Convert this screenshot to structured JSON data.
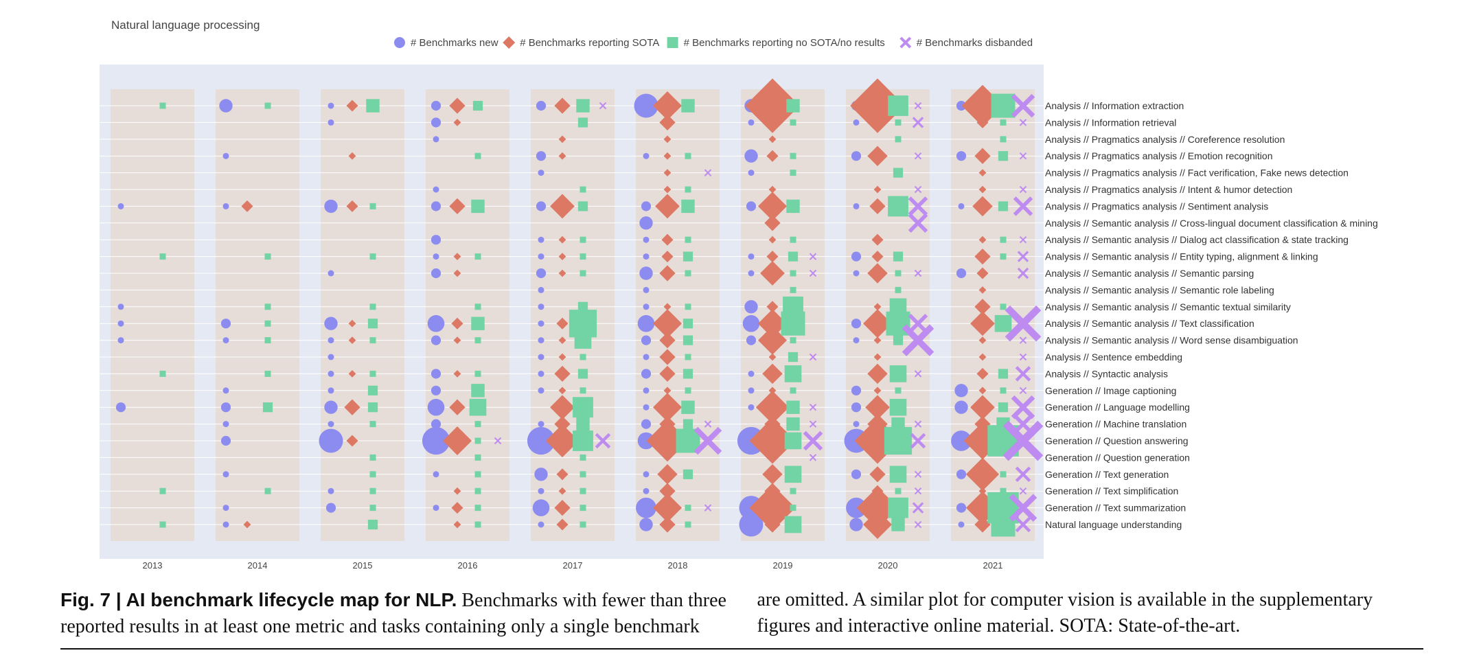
{
  "chart_data": {
    "type": "scatter",
    "title": "Natural language processing",
    "legend_position": "top",
    "legend": [
      {
        "key": "new",
        "label": "# Benchmarks new",
        "marker": "circle",
        "color": "#8c8cf0"
      },
      {
        "key": "sota",
        "label": "# Benchmarks reporting SOTA",
        "marker": "diamond",
        "color": "#dc7863"
      },
      {
        "key": "nosota",
        "label": "# Benchmarks reporting no SOTA/no results",
        "marker": "square",
        "color": "#72d4a4"
      },
      {
        "key": "disbanded",
        "label": "# Benchmarks disbanded",
        "marker": "x",
        "color": "#be8cf0"
      }
    ],
    "years": [
      "2013",
      "2014",
      "2015",
      "2016",
      "2017",
      "2018",
      "2019",
      "2020",
      "2021"
    ],
    "tasks": [
      "Analysis // Information extraction",
      "Analysis // Information retrieval",
      "Analysis // Pragmatics analysis // Coreference resolution",
      "Analysis // Pragmatics analysis // Emotion recognition",
      "Analysis // Pragmatics analysis // Fact verification, Fake news detection",
      "Analysis // Pragmatics analysis // Intent & humor detection",
      "Analysis // Pragmatics analysis // Sentiment analysis",
      "Analysis // Semantic analysis // Cross-lingual document classification & mining",
      "Analysis // Semantic analysis // Dialog act classification & state tracking",
      "Analysis // Semantic analysis // Entity typing, alignment & linking",
      "Analysis // Semantic analysis // Semantic parsing",
      "Analysis // Semantic analysis // Semantic role labeling",
      "Analysis // Semantic analysis // Semantic textual similarity",
      "Analysis // Semantic analysis // Text classification",
      "Analysis // Semantic analysis // Word sense disambiguation",
      "Analysis // Sentence embedding",
      "Analysis // Syntactic analysis",
      "Generation // Image captioning",
      "Generation // Language modelling",
      "Generation // Machine translation",
      "Generation // Question answering",
      "Generation // Question generation",
      "Generation // Text generation",
      "Generation // Text simplification",
      "Generation // Text summarization",
      "Natural language understanding"
    ],
    "size_scale": "marker size proportional to count",
    "grid": true,
    "values": {
      "new": [
        [
          0,
          3,
          1,
          2,
          2,
          6,
          3,
          2,
          2
        ],
        [
          0,
          0,
          1,
          2,
          0,
          0,
          1,
          1,
          0
        ],
        [
          0,
          0,
          0,
          1,
          0,
          0,
          0,
          0,
          0
        ],
        [
          0,
          1,
          0,
          0,
          2,
          1,
          3,
          2,
          2
        ],
        [
          0,
          0,
          0,
          0,
          1,
          0,
          1,
          0,
          0
        ],
        [
          0,
          0,
          0,
          1,
          0,
          0,
          0,
          0,
          0
        ],
        [
          1,
          1,
          3,
          2,
          2,
          2,
          2,
          1,
          1
        ],
        [
          0,
          0,
          0,
          0,
          0,
          3,
          0,
          0,
          0
        ],
        [
          0,
          0,
          0,
          2,
          1,
          1,
          0,
          0,
          0
        ],
        [
          0,
          0,
          0,
          1,
          1,
          1,
          1,
          2,
          0
        ],
        [
          0,
          0,
          1,
          2,
          2,
          3,
          1,
          1,
          2
        ],
        [
          0,
          0,
          0,
          0,
          1,
          1,
          0,
          0,
          0
        ],
        [
          1,
          0,
          0,
          0,
          1,
          1,
          3,
          0,
          0
        ],
        [
          1,
          2,
          3,
          4,
          1,
          4,
          4,
          2,
          0
        ],
        [
          1,
          1,
          1,
          2,
          1,
          2,
          2,
          1,
          0
        ],
        [
          0,
          0,
          1,
          0,
          1,
          1,
          0,
          0,
          0
        ],
        [
          0,
          0,
          1,
          2,
          1,
          2,
          1,
          0,
          0
        ],
        [
          0,
          1,
          1,
          2,
          1,
          1,
          1,
          2,
          3
        ],
        [
          2,
          2,
          3,
          4,
          0,
          1,
          1,
          2,
          3
        ],
        [
          0,
          1,
          1,
          2,
          1,
          2,
          0,
          1,
          0
        ],
        [
          0,
          2,
          6,
          7,
          7,
          4,
          7,
          6,
          5
        ],
        [
          0,
          0,
          0,
          0,
          0,
          0,
          0,
          0,
          0
        ],
        [
          0,
          1,
          0,
          1,
          3,
          1,
          0,
          2,
          2
        ],
        [
          0,
          0,
          1,
          0,
          1,
          1,
          0,
          0,
          0
        ],
        [
          0,
          1,
          2,
          1,
          4,
          5,
          6,
          5,
          2
        ],
        [
          0,
          1,
          0,
          0,
          1,
          3,
          6,
          3,
          1
        ]
      ],
      "sota": [
        [
          0,
          0,
          2,
          3,
          3,
          6,
          12,
          12,
          9
        ],
        [
          0,
          0,
          0,
          1,
          0,
          3,
          2,
          3,
          2
        ],
        [
          0,
          0,
          0,
          0,
          1,
          1,
          1,
          0,
          0
        ],
        [
          0,
          0,
          1,
          0,
          1,
          1,
          2,
          4,
          3
        ],
        [
          0,
          0,
          0,
          0,
          0,
          1,
          0,
          0,
          1
        ],
        [
          0,
          0,
          0,
          0,
          0,
          1,
          1,
          1,
          1
        ],
        [
          0,
          2,
          2,
          3,
          5,
          5,
          6,
          3,
          4
        ],
        [
          0,
          0,
          0,
          0,
          0,
          0,
          3,
          0,
          0
        ],
        [
          0,
          0,
          0,
          0,
          1,
          2,
          1,
          2,
          1
        ],
        [
          0,
          0,
          0,
          1,
          1,
          2,
          2,
          2,
          3
        ],
        [
          0,
          0,
          0,
          1,
          1,
          3,
          5,
          4,
          2
        ],
        [
          0,
          0,
          0,
          0,
          0,
          0,
          0,
          0,
          1
        ],
        [
          0,
          0,
          0,
          0,
          0,
          1,
          2,
          1,
          3
        ],
        [
          0,
          0,
          1,
          2,
          2,
          6,
          6,
          6,
          5
        ],
        [
          0,
          0,
          1,
          1,
          1,
          3,
          6,
          1,
          1
        ],
        [
          0,
          0,
          0,
          0,
          1,
          3,
          1,
          1,
          1
        ],
        [
          0,
          0,
          1,
          1,
          3,
          3,
          4,
          4,
          2
        ],
        [
          0,
          0,
          0,
          0,
          1,
          1,
          1,
          1,
          1
        ],
        [
          0,
          0,
          3,
          3,
          5,
          6,
          7,
          5,
          5
        ],
        [
          0,
          0,
          0,
          0,
          3,
          3,
          3,
          4,
          3
        ],
        [
          0,
          0,
          2,
          6,
          7,
          9,
          10,
          10,
          8
        ],
        [
          0,
          0,
          0,
          0,
          0,
          0,
          1,
          1,
          0
        ],
        [
          0,
          0,
          0,
          0,
          2,
          4,
          4,
          3,
          7
        ],
        [
          0,
          0,
          0,
          1,
          1,
          3,
          3,
          2,
          1
        ],
        [
          0,
          0,
          0,
          2,
          3,
          6,
          10,
          9,
          7
        ],
        [
          0,
          1,
          0,
          1,
          2,
          3,
          3,
          6,
          3
        ]
      ],
      "nosota": [
        [
          1,
          1,
          3,
          2,
          3,
          3,
          3,
          5,
          6
        ],
        [
          0,
          0,
          0,
          0,
          2,
          0,
          1,
          1,
          1
        ],
        [
          0,
          0,
          0,
          0,
          0,
          0,
          0,
          1,
          1
        ],
        [
          0,
          0,
          0,
          1,
          0,
          1,
          1,
          0,
          2
        ],
        [
          0,
          0,
          0,
          0,
          0,
          0,
          1,
          2,
          0
        ],
        [
          0,
          0,
          0,
          0,
          1,
          1,
          0,
          0,
          0
        ],
        [
          0,
          0,
          1,
          3,
          2,
          3,
          3,
          5,
          2
        ],
        [
          0,
          0,
          0,
          0,
          0,
          0,
          0,
          0,
          0
        ],
        [
          0,
          0,
          0,
          0,
          1,
          1,
          1,
          0,
          1
        ],
        [
          1,
          1,
          1,
          1,
          1,
          2,
          2,
          2,
          1
        ],
        [
          0,
          0,
          0,
          0,
          1,
          1,
          1,
          1,
          0
        ],
        [
          0,
          0,
          0,
          0,
          0,
          0,
          1,
          1,
          0
        ],
        [
          0,
          1,
          1,
          1,
          2,
          1,
          5,
          4,
          1
        ],
        [
          0,
          1,
          2,
          3,
          7,
          2,
          6,
          6,
          4
        ],
        [
          0,
          1,
          1,
          1,
          4,
          2,
          1,
          2,
          0
        ],
        [
          0,
          0,
          0,
          0,
          1,
          1,
          2,
          0,
          0
        ],
        [
          1,
          1,
          1,
          1,
          2,
          2,
          4,
          4,
          2
        ],
        [
          0,
          0,
          2,
          3,
          1,
          1,
          1,
          1,
          1
        ],
        [
          0,
          2,
          2,
          4,
          5,
          3,
          3,
          4,
          2
        ],
        [
          0,
          0,
          1,
          1,
          3,
          2,
          3,
          3,
          3
        ],
        [
          0,
          0,
          0,
          1,
          5,
          6,
          4,
          7,
          8
        ],
        [
          0,
          0,
          1,
          1,
          1,
          0,
          0,
          0,
          0
        ],
        [
          0,
          0,
          1,
          1,
          1,
          2,
          4,
          4,
          1
        ],
        [
          1,
          1,
          1,
          1,
          1,
          0,
          1,
          1,
          1
        ],
        [
          0,
          0,
          1,
          1,
          1,
          1,
          1,
          5,
          8
        ],
        [
          1,
          0,
          2,
          1,
          1,
          1,
          4,
          3,
          6
        ]
      ],
      "disbanded": [
        [
          0,
          0,
          0,
          0,
          1,
          0,
          0,
          1,
          5
        ],
        [
          0,
          0,
          0,
          0,
          0,
          0,
          0,
          2,
          1
        ],
        [
          0,
          0,
          0,
          0,
          0,
          0,
          0,
          0,
          0
        ],
        [
          0,
          0,
          0,
          0,
          0,
          0,
          0,
          1,
          1
        ],
        [
          0,
          0,
          0,
          0,
          0,
          1,
          0,
          0,
          0
        ],
        [
          0,
          0,
          0,
          0,
          0,
          0,
          0,
          1,
          1
        ],
        [
          0,
          0,
          0,
          0,
          0,
          0,
          0,
          4,
          4
        ],
        [
          0,
          0,
          0,
          0,
          0,
          0,
          0,
          4,
          0
        ],
        [
          0,
          0,
          0,
          0,
          0,
          0,
          0,
          0,
          1
        ],
        [
          0,
          0,
          0,
          0,
          0,
          0,
          1,
          0,
          2
        ],
        [
          0,
          0,
          0,
          0,
          0,
          0,
          1,
          1,
          2
        ],
        [
          0,
          0,
          0,
          0,
          0,
          0,
          0,
          0,
          0
        ],
        [
          0,
          0,
          0,
          0,
          0,
          0,
          0,
          0,
          0
        ],
        [
          0,
          0,
          0,
          0,
          0,
          0,
          0,
          4,
          8
        ],
        [
          0,
          0,
          0,
          0,
          0,
          0,
          0,
          7,
          1
        ],
        [
          0,
          0,
          0,
          0,
          0,
          0,
          1,
          0,
          1
        ],
        [
          0,
          0,
          0,
          0,
          0,
          0,
          0,
          1,
          3
        ],
        [
          0,
          0,
          0,
          0,
          0,
          0,
          0,
          0,
          1
        ],
        [
          0,
          0,
          0,
          0,
          0,
          0,
          1,
          0,
          5
        ],
        [
          0,
          0,
          0,
          0,
          0,
          1,
          1,
          1,
          4
        ],
        [
          0,
          0,
          0,
          1,
          3,
          6,
          4,
          3,
          9
        ],
        [
          0,
          0,
          0,
          0,
          0,
          0,
          1,
          0,
          0
        ],
        [
          0,
          0,
          0,
          0,
          0,
          0,
          0,
          1,
          3
        ],
        [
          0,
          0,
          0,
          0,
          0,
          0,
          0,
          1,
          1
        ],
        [
          0,
          0,
          0,
          0,
          0,
          1,
          0,
          2,
          6
        ],
        [
          0,
          0,
          0,
          0,
          0,
          0,
          0,
          1,
          3
        ]
      ]
    }
  },
  "caption": {
    "label": "Fig. 7 | AI benchmark lifecycle map for NLP.",
    "text": " Benchmarks with fewer than three reported results in at least one metric and tasks containing only a single benchmark are omitted. A similar plot for computer vision is available in the supplementary figures and interactive online material. SOTA: State-of-the-art."
  }
}
